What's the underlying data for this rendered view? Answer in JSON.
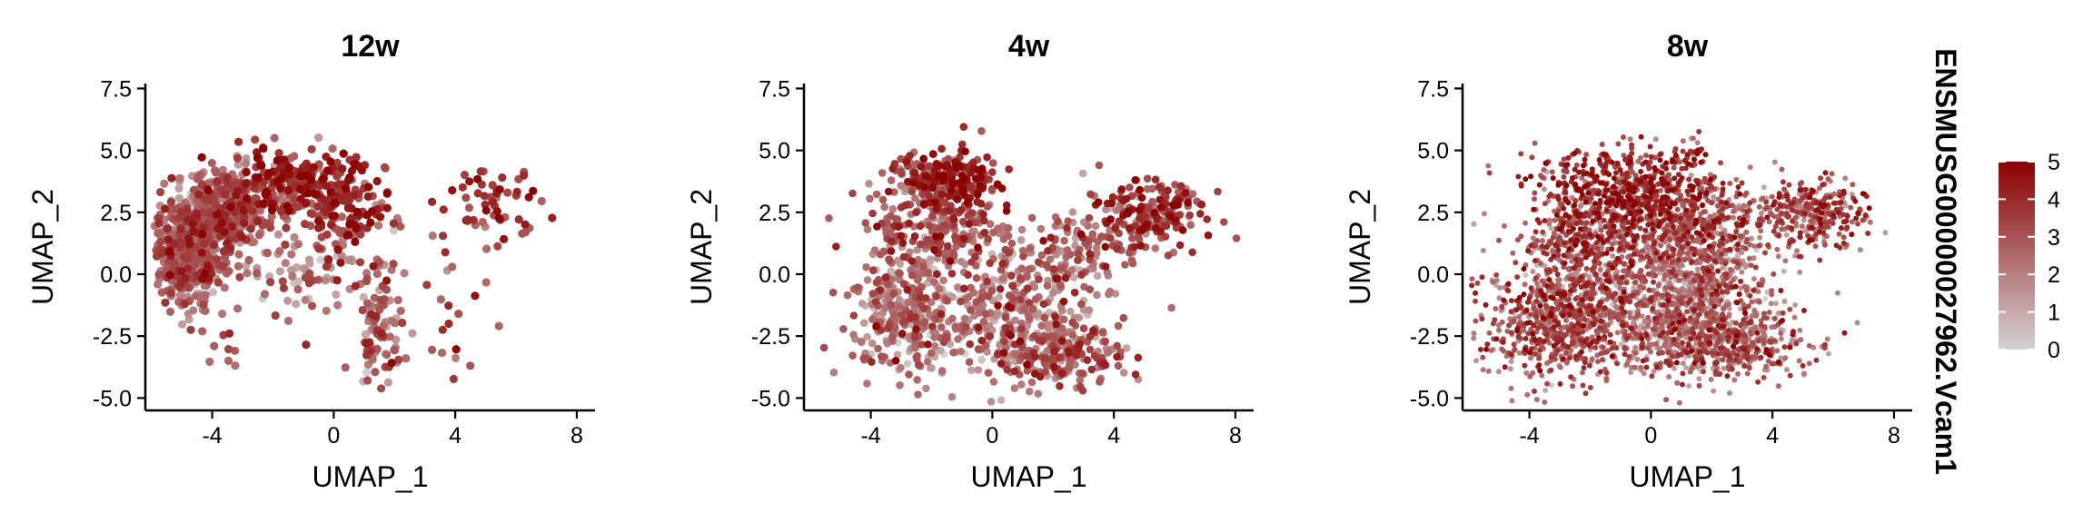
{
  "chart_data": {
    "type": "scatter",
    "facets": [
      {
        "title": "12w",
        "xlabel": "UMAP_1",
        "ylabel": "UMAP_2",
        "xlim": [
          -6.2,
          8.6
        ],
        "ylim": [
          -5.5,
          7.7
        ],
        "xticks": [
          -4,
          0,
          4,
          8
        ],
        "yticks": [
          -5.0,
          -2.5,
          0.0,
          2.5,
          5.0,
          7.5
        ],
        "clusters": [
          {
            "cx": -4.8,
            "cy": 0.6,
            "sx": 0.6,
            "sy": 1.0,
            "n": 420,
            "expr": 2.6
          },
          {
            "cx": -3.8,
            "cy": 2.6,
            "sx": 0.8,
            "sy": 0.8,
            "n": 420,
            "expr": 2.4
          },
          {
            "cx": -1.5,
            "cy": 3.6,
            "sx": 1.1,
            "sy": 0.7,
            "n": 220,
            "expr": 3.8
          },
          {
            "cx": 0.4,
            "cy": 2.4,
            "sx": 0.8,
            "sy": 1.1,
            "n": 140,
            "expr": 3.6
          },
          {
            "cx": -1.0,
            "cy": 0.2,
            "sx": 1.2,
            "sy": 0.9,
            "n": 70,
            "expr": 2.0
          },
          {
            "cx": 1.5,
            "cy": -2.3,
            "sx": 0.4,
            "sy": 1.1,
            "n": 90,
            "expr": 2.5
          },
          {
            "cx": 5.2,
            "cy": 2.7,
            "sx": 0.8,
            "sy": 0.7,
            "n": 55,
            "expr": 3.8
          },
          {
            "cx": 3.8,
            "cy": -1.2,
            "sx": 0.9,
            "sy": 1.2,
            "n": 22,
            "expr": 3.0
          },
          {
            "cx": -3.5,
            "cy": -3.0,
            "sx": 0.6,
            "sy": 0.5,
            "n": 10,
            "expr": 2.6
          }
        ]
      },
      {
        "title": "4w",
        "xlabel": "UMAP_1",
        "ylabel": "UMAP_2",
        "xlim": [
          -6.2,
          8.6
        ],
        "ylim": [
          -5.5,
          7.7
        ],
        "xticks": [
          -4,
          0,
          4,
          8
        ],
        "yticks": [
          -5.0,
          -2.5,
          0.0,
          2.5,
          5.0,
          7.5
        ],
        "clusters": [
          {
            "cx": -1.2,
            "cy": 3.8,
            "sx": 0.7,
            "sy": 0.6,
            "n": 180,
            "expr": 3.9
          },
          {
            "cx": -2.0,
            "cy": 2.0,
            "sx": 1.1,
            "sy": 1.0,
            "n": 220,
            "expr": 2.9
          },
          {
            "cx": -2.8,
            "cy": -1.6,
            "sx": 1.0,
            "sy": 1.2,
            "n": 300,
            "expr": 2.1
          },
          {
            "cx": 0.5,
            "cy": -1.5,
            "sx": 1.3,
            "sy": 1.3,
            "n": 300,
            "expr": 2.0
          },
          {
            "cx": 2.2,
            "cy": -3.2,
            "sx": 1.1,
            "sy": 0.6,
            "n": 200,
            "expr": 2.8
          },
          {
            "cx": 5.0,
            "cy": 2.4,
            "sx": 1.0,
            "sy": 0.7,
            "n": 200,
            "expr": 3.3
          },
          {
            "cx": 2.5,
            "cy": 0.8,
            "sx": 1.2,
            "sy": 1.0,
            "n": 120,
            "expr": 2.6
          },
          {
            "cx": -2.5,
            "cy": 4.0,
            "sx": 0.6,
            "sy": 0.4,
            "n": 30,
            "expr": 2.8
          }
        ]
      },
      {
        "title": "8w",
        "xlabel": "UMAP_1",
        "ylabel": "UMAP_2",
        "xlim": [
          -6.2,
          8.6
        ],
        "ylim": [
          -5.5,
          7.7
        ],
        "xticks": [
          -4,
          0,
          4,
          8
        ],
        "yticks": [
          -5.0,
          -2.5,
          0.0,
          2.5,
          5.0,
          7.5
        ],
        "clusters": [
          {
            "cx": -0.8,
            "cy": 3.3,
            "sx": 1.5,
            "sy": 0.9,
            "n": 600,
            "expr": 3.8
          },
          {
            "cx": -3.0,
            "cy": -1.8,
            "sx": 1.2,
            "sy": 1.2,
            "n": 700,
            "expr": 3.0
          },
          {
            "cx": 0.8,
            "cy": -1.2,
            "sx": 1.5,
            "sy": 1.3,
            "n": 900,
            "expr": 2.2
          },
          {
            "cx": 2.5,
            "cy": -2.8,
            "sx": 1.3,
            "sy": 0.7,
            "n": 400,
            "expr": 2.7
          },
          {
            "cx": 1.5,
            "cy": 1.6,
            "sx": 1.2,
            "sy": 1.0,
            "n": 500,
            "expr": 2.9
          },
          {
            "cx": 5.2,
            "cy": 2.4,
            "sx": 0.9,
            "sy": 0.7,
            "n": 300,
            "expr": 3.2
          },
          {
            "cx": -2.3,
            "cy": 1.3,
            "sx": 1.0,
            "sy": 1.0,
            "n": 300,
            "expr": 3.1
          },
          {
            "cx": 1.3,
            "cy": 4.8,
            "sx": 0.3,
            "sy": 0.3,
            "n": 25,
            "expr": 3.6
          }
        ]
      }
    ],
    "legend": {
      "title": "ENSMUSG00000027962.Vcam1",
      "range": [
        0,
        5
      ],
      "ticks": [
        0,
        1,
        2,
        3,
        4,
        5
      ],
      "position": "right"
    },
    "colors": {
      "low": "#d3d3d3",
      "high": "#8b0000"
    },
    "grid": false
  }
}
